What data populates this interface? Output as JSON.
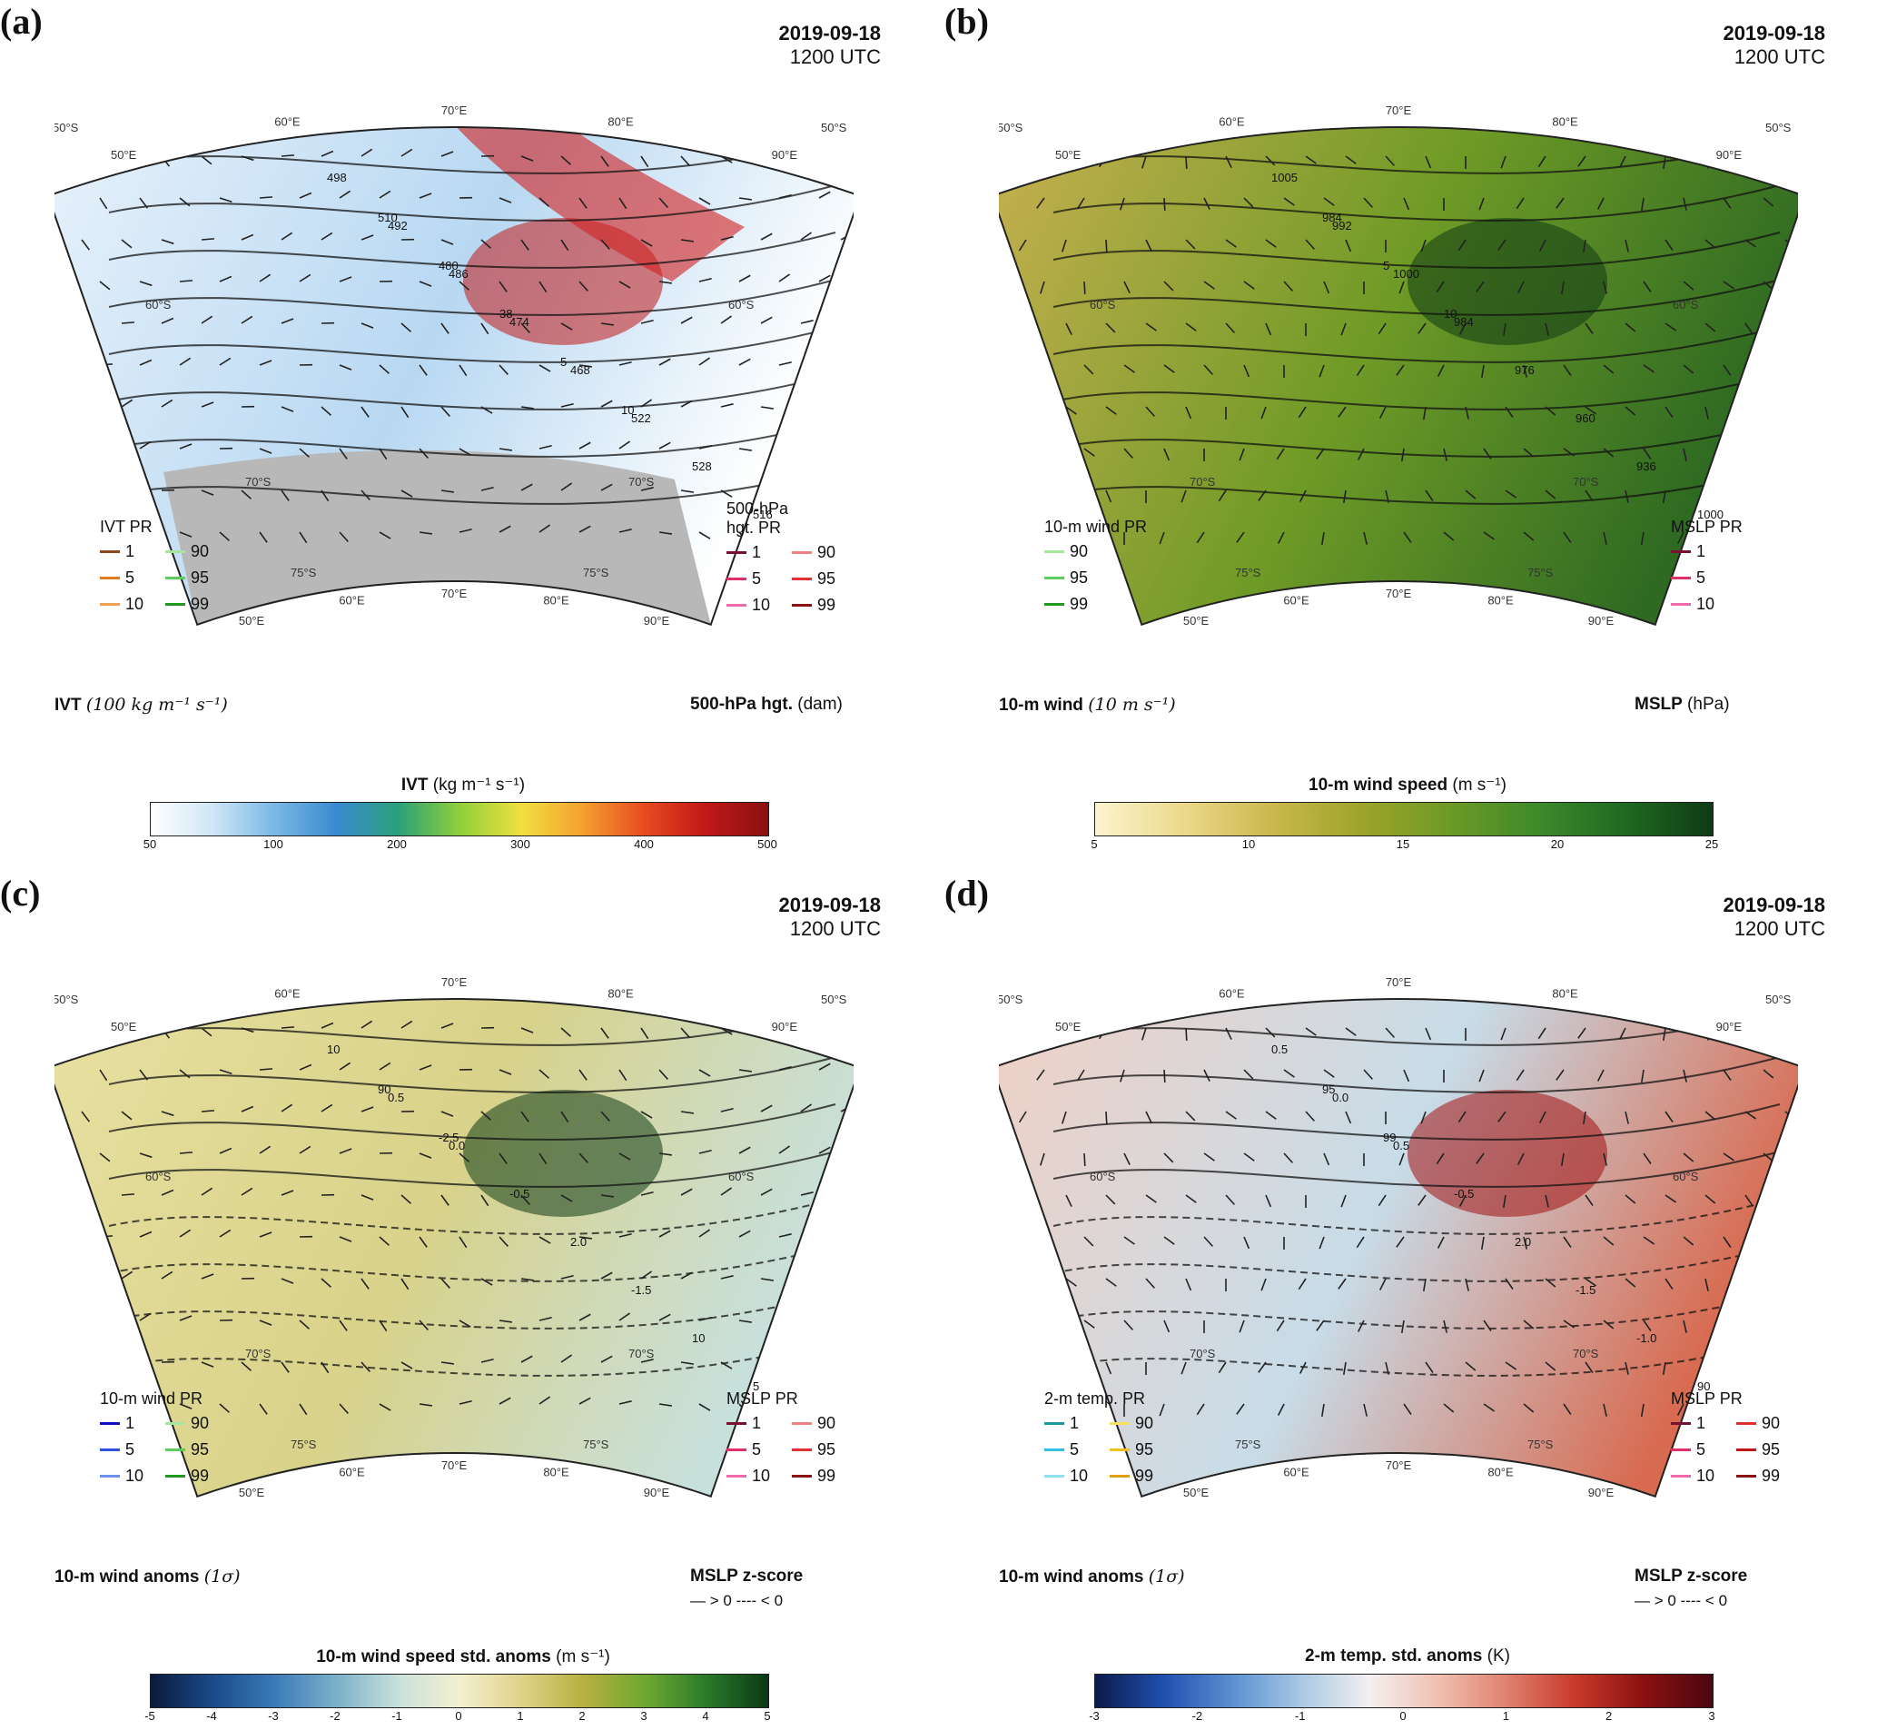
{
  "figure": {
    "panels": [
      {
        "tag": "(a)",
        "date": "2019-09-18",
        "time": "1200 UTC",
        "shading_field": "IVT",
        "left_legend": {
          "title": "IVT PR",
          "items": [
            {
              "label": "1",
              "color": "#8b4a1a"
            },
            {
              "label": "90",
              "color": "#a8e6a0"
            },
            {
              "label": "5",
              "color": "#e07a1f"
            },
            {
              "label": "95",
              "color": "#5ccc5c"
            },
            {
              "label": "10",
              "color": "#f0a050"
            },
            {
              "label": "99",
              "color": "#1f9a1f"
            }
          ]
        },
        "right_legend": {
          "title": "500-hPa",
          "title2": "hgt. PR",
          "items": [
            {
              "label": "1",
              "color": "#7a1030"
            },
            {
              "label": "90",
              "color": "#f08080"
            },
            {
              "label": "5",
              "color": "#e0306a"
            },
            {
              "label": "95",
              "color": "#e03030"
            },
            {
              "label": "10",
              "color": "#ee6aa8"
            },
            {
              "label": "99",
              "color": "#8b1010"
            }
          ]
        },
        "vector_label": "IVT",
        "vector_units": "(100 kg m⁻¹ s⁻¹)",
        "contour_label": "500-hPa hgt.",
        "contour_units": "(dam)",
        "colorbar": {
          "title": "IVT",
          "units": "(kg m⁻¹ s⁻¹)",
          "ticks": [
            "50",
            "100",
            "200",
            "300",
            "400",
            "500"
          ],
          "colors": [
            "#ffffff",
            "#cfe6f6",
            "#7ab8e6",
            "#3a8ad0",
            "#2aa07a",
            "#8fcf3a",
            "#f0e040",
            "#f5a030",
            "#e84a20",
            "#c01818",
            "#8a1010"
          ]
        },
        "contour_labels": [
          "498",
          "492",
          "486",
          "474",
          "468",
          "522",
          "528",
          "516",
          "510",
          "480",
          "38",
          "5",
          "10"
        ]
      },
      {
        "tag": "(b)",
        "date": "2019-09-18",
        "time": "1200 UTC",
        "shading_field": "10-m wind speed",
        "left_legend": {
          "title": "10-m wind PR",
          "items": [
            {
              "label": "90",
              "color": "#a8e6a0"
            },
            {
              "label": "95",
              "color": "#5ccc5c"
            },
            {
              "label": "99",
              "color": "#1f9a1f"
            }
          ]
        },
        "right_legend": {
          "title": "MSLP PR",
          "items": [
            {
              "label": "1",
              "color": "#7a1030"
            },
            {
              "label": "5",
              "color": "#e0306a"
            },
            {
              "label": "10",
              "color": "#ee6aa8"
            }
          ]
        },
        "vector_label": "10-m wind",
        "vector_units": "(10 m s⁻¹)",
        "contour_label": "MSLP",
        "contour_units": "(hPa)",
        "colorbar": {
          "title": "10-m wind speed",
          "units": "(m s⁻¹)",
          "ticks": [
            "5",
            "10",
            "15",
            "20",
            "25"
          ],
          "colors": [
            "#fbf4cf",
            "#ecd98a",
            "#cbb84e",
            "#9ea42a",
            "#6e9a26",
            "#3f8a2a",
            "#1f6a22",
            "#0f3a14"
          ]
        },
        "contour_labels": [
          "1005",
          "992",
          "1000",
          "984",
          "976",
          "960",
          "936",
          "1000",
          "984",
          "5",
          "10"
        ]
      },
      {
        "tag": "(c)",
        "date": "2019-09-18",
        "time": "1200 UTC",
        "shading_field": "10-m wind speed std. anoms",
        "left_legend": {
          "title": "10-m wind PR",
          "items": [
            {
              "label": "1",
              "color": "#1010c0"
            },
            {
              "label": "90",
              "color": "#a8e6a0"
            },
            {
              "label": "5",
              "color": "#3050e0"
            },
            {
              "label": "95",
              "color": "#5ccc5c"
            },
            {
              "label": "10",
              "color": "#7090f0"
            },
            {
              "label": "99",
              "color": "#1f9a1f"
            }
          ]
        },
        "right_legend": {
          "title": "MSLP PR",
          "items": [
            {
              "label": "1",
              "color": "#7a1030"
            },
            {
              "label": "90",
              "color": "#f08080"
            },
            {
              "label": "5",
              "color": "#e0306a"
            },
            {
              "label": "95",
              "color": "#e03030"
            },
            {
              "label": "10",
              "color": "#ee6aa8"
            },
            {
              "label": "99",
              "color": "#8b1010"
            }
          ]
        },
        "vector_label": "10-m wind anoms",
        "vector_units": "(1σ)",
        "contour_label": "MSLP z-score",
        "zscore_pos": "> 0",
        "zscore_neg": "< 0",
        "colorbar": {
          "title": "10-m wind speed std. anoms",
          "units": "(m s⁻¹)",
          "ticks": [
            "-5",
            "-4",
            "-3",
            "-2",
            "-1",
            "0",
            "1",
            "2",
            "3",
            "4",
            "5"
          ],
          "colors": [
            "#0a1a3a",
            "#1a4a8a",
            "#3a7ab8",
            "#7ab0c8",
            "#c8e0dc",
            "#f4f0d0",
            "#e0d28a",
            "#b8b040",
            "#6ea830",
            "#2a7a2a",
            "#0a3a14"
          ]
        },
        "contour_labels": [
          "10",
          "0.5",
          "0.0",
          "-0.5",
          "2.0",
          "-1.5",
          "10",
          "5",
          "90",
          "-2.5"
        ]
      },
      {
        "tag": "(d)",
        "date": "2019-09-18",
        "time": "1200 UTC",
        "shading_field": "2-m temp. std. anoms",
        "left_legend": {
          "title": "2-m temp. PR",
          "items": [
            {
              "label": "1",
              "color": "#1a9a9a"
            },
            {
              "label": "90",
              "color": "#f5e060"
            },
            {
              "label": "5",
              "color": "#30c0e0"
            },
            {
              "label": "95",
              "color": "#f0c020"
            },
            {
              "label": "10",
              "color": "#90e0f0"
            },
            {
              "label": "99",
              "color": "#e0a010"
            }
          ]
        },
        "right_legend": {
          "title": "MSLP PR",
          "items": [
            {
              "label": "1",
              "color": "#7a1030"
            },
            {
              "label": "90",
              "color": "#e03030"
            },
            {
              "label": "5",
              "color": "#e0306a"
            },
            {
              "label": "95",
              "color": "#c01818"
            },
            {
              "label": "10",
              "color": "#ee6aa8"
            },
            {
              "label": "99",
              "color": "#8b1010"
            }
          ]
        },
        "vector_label": "10-m wind anoms",
        "vector_units": "(1σ)",
        "contour_label": "MSLP z-score",
        "zscore_pos": "> 0",
        "zscore_neg": "< 0",
        "colorbar": {
          "title": "2-m temp. std. anoms",
          "units": "(K)",
          "ticks": [
            "-3",
            "-2",
            "-1",
            "0",
            "1",
            "2",
            "3"
          ],
          "colors": [
            "#0a1a4a",
            "#2050b0",
            "#5a90d0",
            "#a8c8e4",
            "#f4f0f0",
            "#f0c0b0",
            "#e08070",
            "#c83a2a",
            "#8a1010",
            "#4a0810"
          ]
        },
        "contour_labels": [
          "0.5",
          "0.0",
          "0.5",
          "-0.5",
          "2.0",
          "-1.5",
          "-1.0",
          "90",
          "95",
          "99"
        ]
      }
    ],
    "map_labels": {
      "lon": [
        "50°E",
        "60°E",
        "70°E",
        "80°E",
        "90°E"
      ],
      "lat": [
        "50°S",
        "60°S",
        "70°S",
        "75°S"
      ]
    }
  }
}
